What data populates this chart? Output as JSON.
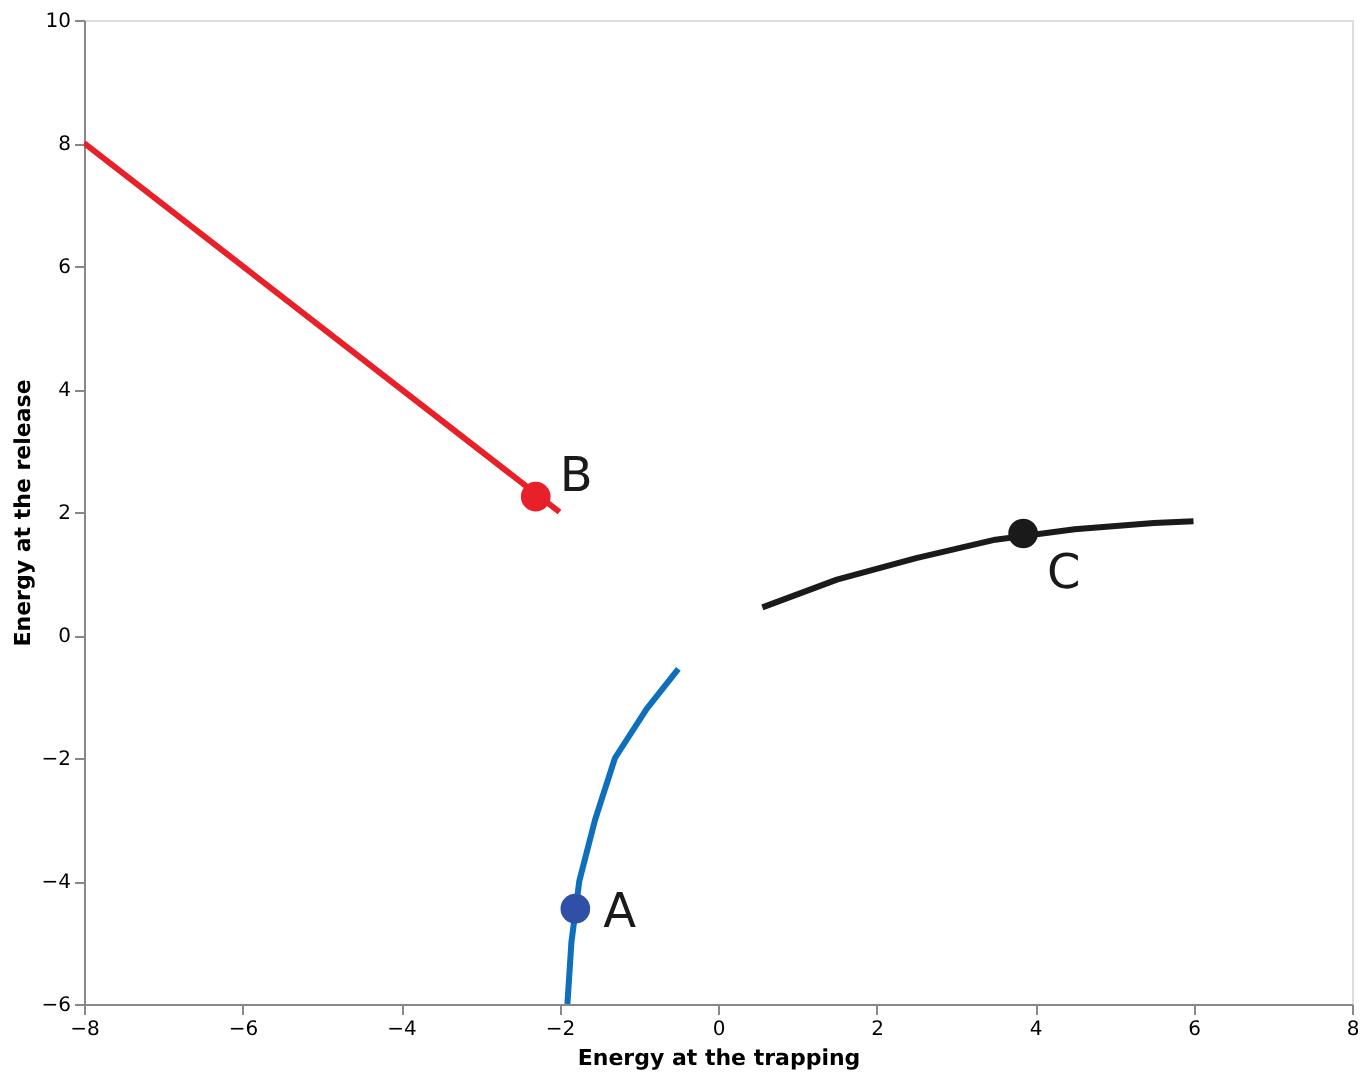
{
  "chart_data": {
    "type": "line",
    "xlabel": "Energy at the trapping",
    "ylabel": "Energy at the release",
    "xlim": [
      -8,
      8
    ],
    "ylim": [
      -6,
      10
    ],
    "xticks": [
      -8,
      -6,
      -4,
      -2,
      0,
      2,
      4,
      6,
      8
    ],
    "yticks": [
      -6,
      -4,
      -2,
      0,
      2,
      4,
      6,
      8,
      10
    ],
    "grid": false,
    "legend": false,
    "series": [
      {
        "color": "#e8202a",
        "x": [
          -8,
          -2
        ],
        "values": [
          8,
          2
        ]
      },
      {
        "color": "#0e6fbd",
        "x": [
          -1.9,
          -1.85,
          -1.75,
          -1.55,
          -1.3,
          -0.9,
          -0.5
        ],
        "values": [
          -6,
          -5,
          -4,
          -3,
          -2,
          -1.2,
          -0.55
        ]
      },
      {
        "color": "#1a1a1a",
        "x": [
          0.56,
          1.5,
          2.5,
          3.5,
          4.5,
          5.5,
          6
        ],
        "values": [
          0.45,
          0.9,
          1.25,
          1.55,
          1.72,
          1.82,
          1.85
        ]
      },
      {
        "type": "scatter",
        "marker": "circle",
        "color": "#3050a8",
        "x": [
          -1.8
        ],
        "values": [
          -4.45
        ]
      },
      {
        "type": "scatter",
        "marker": "circle",
        "color": "#e8202a",
        "x": [
          -2.3
        ],
        "values": [
          2.25
        ]
      },
      {
        "type": "scatter",
        "marker": "circle",
        "color": "#1a1a1a",
        "x": [
          3.85
        ],
        "values": [
          1.65
        ]
      }
    ],
    "annotations": [
      {
        "text": "A",
        "x": -1.8,
        "y": -4.45
      },
      {
        "text": "B",
        "x": -2.3,
        "y": 2.25
      },
      {
        "text": "C",
        "x": 3.85,
        "y": 1.65
      }
    ]
  }
}
